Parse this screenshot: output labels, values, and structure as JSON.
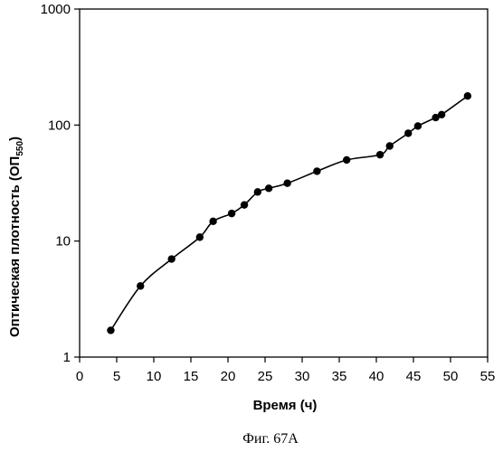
{
  "chart_data": {
    "type": "line",
    "xlabel": "Время (ч)",
    "ylabel": {
      "main": "Оптическая плотность (ОП",
      "subscript": "550",
      "close": ")"
    },
    "caption": "Фиг. 67А",
    "x_scale": "linear",
    "y_scale": "log",
    "xlim": [
      0,
      55
    ],
    "ylim": [
      1,
      1000
    ],
    "x_ticks": [
      0,
      5,
      10,
      15,
      20,
      25,
      30,
      35,
      40,
      45,
      50,
      55
    ],
    "y_ticks": [
      1,
      10,
      100,
      1000
    ],
    "grid": false,
    "legend": "none",
    "series": [
      {
        "x": [
          4.2,
          8.2,
          12.4,
          16.2,
          18.0,
          20.5,
          22.2,
          24.0,
          25.5,
          28.0,
          32.0,
          36.0,
          40.5,
          41.8,
          44.3,
          45.6,
          48.0,
          48.8,
          52.3
        ],
        "y": [
          1.7,
          4.1,
          7.0,
          10.8,
          14.8,
          17.3,
          20.5,
          26.5,
          28.5,
          31.5,
          40.0,
          50.0,
          55.5,
          66.0,
          85.0,
          98.0,
          116.0,
          123.0,
          178.0
        ],
        "color": "#000000"
      }
    ]
  }
}
